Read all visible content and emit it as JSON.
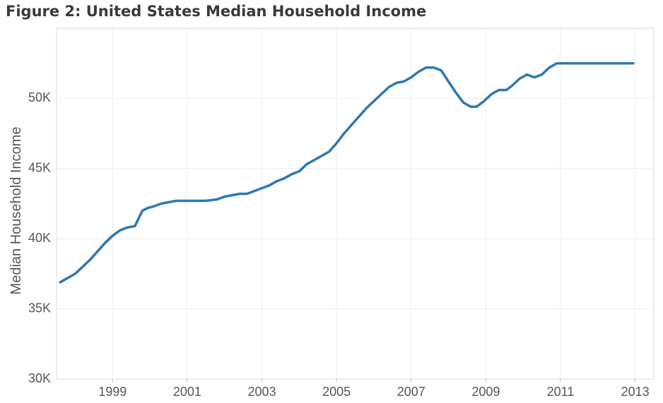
{
  "figure_title": "Figure 2: United States Median Household Income",
  "chart_data": {
    "type": "line",
    "title": "Figure 2: United States Median Household Income",
    "xlabel": "",
    "ylabel": "Median Household Income",
    "xlim": [
      1997.5,
      2013.5
    ],
    "ylim": [
      30000,
      55000
    ],
    "x_ticks": [
      1999,
      2001,
      2003,
      2005,
      2007,
      2009,
      2011,
      2013
    ],
    "y_ticks": [
      {
        "value": 30000,
        "label": "30K"
      },
      {
        "value": 35000,
        "label": "35K"
      },
      {
        "value": 40000,
        "label": "40K"
      },
      {
        "value": 45000,
        "label": "45K"
      },
      {
        "value": 50000,
        "label": "50K"
      }
    ],
    "grid": true,
    "line_color": "#2f78b2",
    "series": [
      {
        "x": [
          1997.6,
          1998.0,
          1998.4,
          1998.8,
          1999.0,
          1999.2,
          1999.4,
          1999.6,
          1999.8,
          1999.95,
          2000.1,
          2000.3,
          2000.5,
          2000.7,
          2000.9,
          2001.2,
          2001.5,
          2001.8,
          2002.0,
          2002.2,
          2002.4,
          2002.6,
          2002.8,
          2003.0,
          2003.2,
          2003.4,
          2003.6,
          2003.8,
          2004.0,
          2004.2,
          2004.4,
          2004.6,
          2004.8,
          2005.0,
          2005.2,
          2005.4,
          2005.6,
          2005.8,
          2006.0,
          2006.2,
          2006.4,
          2006.6,
          2006.8,
          2007.0,
          2007.2,
          2007.4,
          2007.6,
          2007.8,
          2008.0,
          2008.2,
          2008.4,
          2008.6,
          2008.75,
          2008.95,
          2009.15,
          2009.35,
          2009.55,
          2009.7,
          2009.9,
          2010.1,
          2010.3,
          2010.5,
          2010.7,
          2010.9,
          2011.1,
          2011.3,
          2011.5,
          2011.7,
          2011.9,
          2012.1,
          2012.3,
          2012.5,
          2012.7,
          2012.95
        ],
        "y": [
          36900,
          37500,
          38500,
          39700,
          40200,
          40600,
          40800,
          40900,
          42000,
          42200,
          42300,
          42500,
          42600,
          42700,
          42700,
          42700,
          42700,
          42800,
          43000,
          43100,
          43200,
          43200,
          43400,
          43600,
          43800,
          44100,
          44300,
          44600,
          44800,
          45300,
          45600,
          45900,
          46200,
          46800,
          47500,
          48100,
          48700,
          49300,
          49800,
          50300,
          50800,
          51100,
          51200,
          51500,
          51900,
          52200,
          52200,
          52000,
          51200,
          50400,
          49700,
          49400,
          49400,
          49800,
          50300,
          50600,
          50600,
          50900,
          51400,
          51700,
          51500,
          51700,
          52200,
          52500,
          52500,
          52500,
          52500,
          52500,
          52500,
          52500,
          52500,
          52500,
          52500,
          52500
        ]
      }
    ]
  }
}
